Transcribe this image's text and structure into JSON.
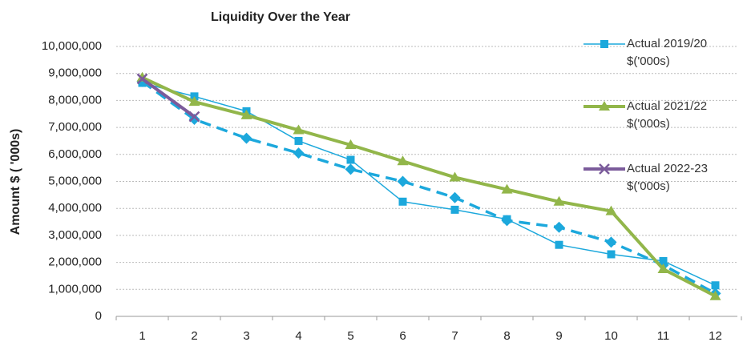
{
  "chart_data": {
    "type": "line",
    "title": "Liquidity Over the Year",
    "y_label": "Amount $ ( '000s)",
    "categories": [
      "1",
      "2",
      "3",
      "4",
      "5",
      "6",
      "7",
      "8",
      "9",
      "10",
      "11",
      "12"
    ],
    "ylim": [
      0,
      10000000
    ],
    "yticks": [
      0,
      {
        "value": 1000000,
        "label": "1,000,000"
      },
      {
        "value": 2000000,
        "label": "2,000,000"
      },
      {
        "value": 3000000,
        "label": "3,000,000"
      },
      {
        "value": 4000000,
        "label": "4,000,000"
      },
      {
        "value": 5000000,
        "label": "5,000,000"
      },
      {
        "value": 6000000,
        "label": "6,000,000"
      },
      {
        "value": 7000000,
        "label": "7,000,000"
      },
      {
        "value": 8000000,
        "label": "8,000,000"
      },
      {
        "value": 9000000,
        "label": "9,000,000"
      },
      {
        "value": 10000000,
        "label": "10,000,000"
      }
    ],
    "grid": true,
    "legend": "right",
    "series": [
      {
        "name": "Actual 2019/20 $('000s)",
        "color": "#1ca8dc",
        "marker": "square",
        "dashed": false,
        "values": [
          8650000,
          8150000,
          7600000,
          6500000,
          5800000,
          4250000,
          3950000,
          3600000,
          2650000,
          2300000,
          2050000,
          1150000
        ]
      },
      {
        "color": "#1ca8dc",
        "marker": "diamond",
        "dashed": true,
        "values": [
          8700000,
          7300000,
          6600000,
          6050000,
          5450000,
          5000000,
          4400000,
          3550000,
          3300000,
          2750000,
          1900000,
          850000
        ]
      },
      {
        "name": "Actual 2021/22 $('000s)",
        "color": "#92b64a",
        "marker": "triangle",
        "dashed": false,
        "values": [
          8850000,
          7950000,
          7450000,
          6900000,
          6350000,
          5750000,
          5150000,
          4700000,
          4250000,
          3900000,
          1750000,
          750000
        ]
      },
      {
        "name": "Actual 2022-23 $('000s)",
        "color": "#7b5b9b",
        "marker": "x",
        "dashed": false,
        "values": [
          8800000,
          7400000,
          null,
          null,
          null,
          null,
          null,
          null,
          null,
          null,
          null,
          null
        ]
      }
    ]
  }
}
